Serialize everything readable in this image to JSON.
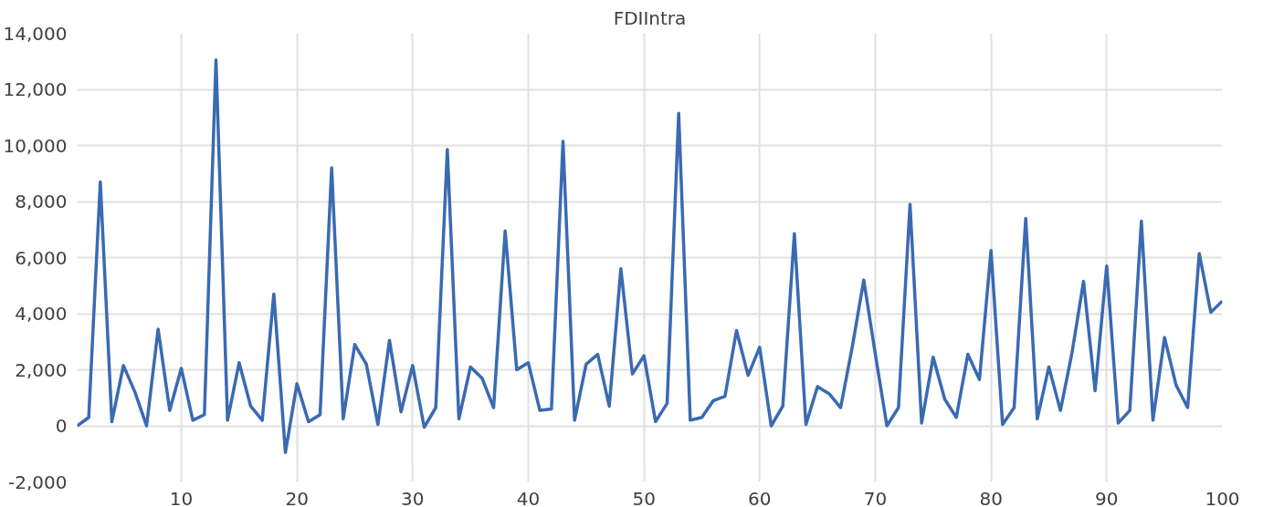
{
  "chart_data": {
    "type": "line",
    "title": "FDIIntra",
    "x": [
      1,
      2,
      3,
      4,
      5,
      6,
      7,
      8,
      9,
      10,
      11,
      12,
      13,
      14,
      15,
      16,
      17,
      18,
      19,
      20,
      21,
      22,
      23,
      24,
      25,
      26,
      27,
      28,
      29,
      30,
      31,
      32,
      33,
      34,
      35,
      36,
      37,
      38,
      39,
      40,
      41,
      42,
      43,
      44,
      45,
      46,
      47,
      48,
      49,
      50,
      51,
      52,
      53,
      54,
      55,
      56,
      57,
      58,
      59,
      60,
      61,
      62,
      63,
      64,
      65,
      66,
      67,
      68,
      69,
      70,
      71,
      72,
      73,
      74,
      75,
      76,
      77,
      78,
      79,
      80,
      81,
      82,
      83,
      84,
      85,
      86,
      87,
      88,
      89,
      90,
      91,
      92,
      93,
      94,
      95,
      96,
      97,
      98,
      99,
      100
    ],
    "series": [
      {
        "color": "#3a6ab2",
        "values": [
          0,
          300,
          8700,
          150,
          2150,
          1200,
          0,
          3450,
          550,
          2050,
          200,
          400,
          13050,
          200,
          2250,
          700,
          200,
          4700,
          -950,
          1500,
          150,
          400,
          9200,
          250,
          2900,
          2200,
          50,
          3050,
          500,
          2150,
          -50,
          650,
          9850,
          250,
          2100,
          1700,
          650,
          6950,
          2000,
          2250,
          550,
          600,
          10150,
          200,
          2200,
          2550,
          700,
          5600,
          1850,
          2500,
          150,
          800,
          11150,
          200,
          300,
          900,
          1050,
          3400,
          1800,
          2800,
          0,
          700,
          6850,
          50,
          1400,
          1150,
          650,
          2800,
          5200,
          2550,
          0,
          650,
          7900,
          100,
          2450,
          950,
          300,
          2550,
          1650,
          6250,
          50,
          650,
          7400,
          250,
          2100,
          550,
          2600,
          5150,
          1250,
          5700,
          100,
          550,
          7300,
          200,
          3150,
          1450,
          650,
          6150,
          4050,
          4450
        ]
      }
    ],
    "xlim": [
      1,
      100
    ],
    "xticks": [
      10,
      20,
      30,
      40,
      50,
      60,
      70,
      80,
      90,
      100
    ],
    "ylim": [
      -2000,
      14000
    ],
    "yticks": [
      {
        "value": -2000,
        "label": "-2,000"
      },
      {
        "value": 0,
        "label": "0"
      },
      {
        "value": 2000,
        "label": "2,000"
      },
      {
        "value": 4000,
        "label": "4,000"
      },
      {
        "value": 6000,
        "label": "6,000"
      },
      {
        "value": 8000,
        "label": "8,000"
      },
      {
        "value": 10000,
        "label": "10,000"
      },
      {
        "value": 12000,
        "label": "12,000"
      },
      {
        "value": 14000,
        "label": "14,000"
      }
    ],
    "grid": true,
    "marker": "none",
    "line_style": "solid"
  }
}
